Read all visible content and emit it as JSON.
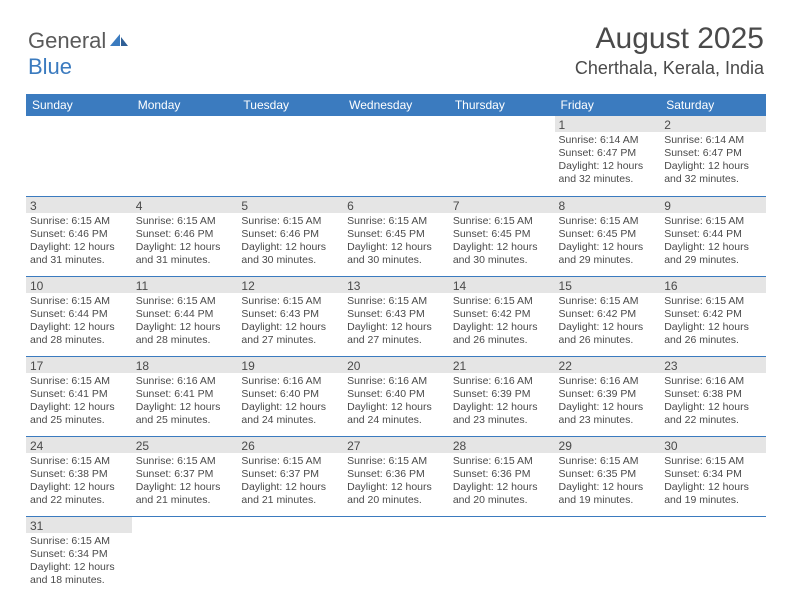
{
  "header": {
    "logo_general": "General",
    "logo_blue": "Blue",
    "month_title": "August 2025",
    "location": "Cherthala, Kerala, India"
  },
  "colors": {
    "header_bg": "#3b7bbf",
    "header_text": "#ffffff",
    "daynum_bg": "#e5e5e5",
    "border": "#3b7bbf",
    "text": "#4a4a4a",
    "logo_blue": "#3b7bbf"
  },
  "weekdays": [
    "Sunday",
    "Monday",
    "Tuesday",
    "Wednesday",
    "Thursday",
    "Friday",
    "Saturday"
  ],
  "weeks": [
    [
      null,
      null,
      null,
      null,
      null,
      {
        "n": "1",
        "sr": "Sunrise: 6:14 AM",
        "ss": "Sunset: 6:47 PM",
        "d1": "Daylight: 12 hours",
        "d2": "and 32 minutes."
      },
      {
        "n": "2",
        "sr": "Sunrise: 6:14 AM",
        "ss": "Sunset: 6:47 PM",
        "d1": "Daylight: 12 hours",
        "d2": "and 32 minutes."
      }
    ],
    [
      {
        "n": "3",
        "sr": "Sunrise: 6:15 AM",
        "ss": "Sunset: 6:46 PM",
        "d1": "Daylight: 12 hours",
        "d2": "and 31 minutes."
      },
      {
        "n": "4",
        "sr": "Sunrise: 6:15 AM",
        "ss": "Sunset: 6:46 PM",
        "d1": "Daylight: 12 hours",
        "d2": "and 31 minutes."
      },
      {
        "n": "5",
        "sr": "Sunrise: 6:15 AM",
        "ss": "Sunset: 6:46 PM",
        "d1": "Daylight: 12 hours",
        "d2": "and 30 minutes."
      },
      {
        "n": "6",
        "sr": "Sunrise: 6:15 AM",
        "ss": "Sunset: 6:45 PM",
        "d1": "Daylight: 12 hours",
        "d2": "and 30 minutes."
      },
      {
        "n": "7",
        "sr": "Sunrise: 6:15 AM",
        "ss": "Sunset: 6:45 PM",
        "d1": "Daylight: 12 hours",
        "d2": "and 30 minutes."
      },
      {
        "n": "8",
        "sr": "Sunrise: 6:15 AM",
        "ss": "Sunset: 6:45 PM",
        "d1": "Daylight: 12 hours",
        "d2": "and 29 minutes."
      },
      {
        "n": "9",
        "sr": "Sunrise: 6:15 AM",
        "ss": "Sunset: 6:44 PM",
        "d1": "Daylight: 12 hours",
        "d2": "and 29 minutes."
      }
    ],
    [
      {
        "n": "10",
        "sr": "Sunrise: 6:15 AM",
        "ss": "Sunset: 6:44 PM",
        "d1": "Daylight: 12 hours",
        "d2": "and 28 minutes."
      },
      {
        "n": "11",
        "sr": "Sunrise: 6:15 AM",
        "ss": "Sunset: 6:44 PM",
        "d1": "Daylight: 12 hours",
        "d2": "and 28 minutes."
      },
      {
        "n": "12",
        "sr": "Sunrise: 6:15 AM",
        "ss": "Sunset: 6:43 PM",
        "d1": "Daylight: 12 hours",
        "d2": "and 27 minutes."
      },
      {
        "n": "13",
        "sr": "Sunrise: 6:15 AM",
        "ss": "Sunset: 6:43 PM",
        "d1": "Daylight: 12 hours",
        "d2": "and 27 minutes."
      },
      {
        "n": "14",
        "sr": "Sunrise: 6:15 AM",
        "ss": "Sunset: 6:42 PM",
        "d1": "Daylight: 12 hours",
        "d2": "and 26 minutes."
      },
      {
        "n": "15",
        "sr": "Sunrise: 6:15 AM",
        "ss": "Sunset: 6:42 PM",
        "d1": "Daylight: 12 hours",
        "d2": "and 26 minutes."
      },
      {
        "n": "16",
        "sr": "Sunrise: 6:15 AM",
        "ss": "Sunset: 6:42 PM",
        "d1": "Daylight: 12 hours",
        "d2": "and 26 minutes."
      }
    ],
    [
      {
        "n": "17",
        "sr": "Sunrise: 6:15 AM",
        "ss": "Sunset: 6:41 PM",
        "d1": "Daylight: 12 hours",
        "d2": "and 25 minutes."
      },
      {
        "n": "18",
        "sr": "Sunrise: 6:16 AM",
        "ss": "Sunset: 6:41 PM",
        "d1": "Daylight: 12 hours",
        "d2": "and 25 minutes."
      },
      {
        "n": "19",
        "sr": "Sunrise: 6:16 AM",
        "ss": "Sunset: 6:40 PM",
        "d1": "Daylight: 12 hours",
        "d2": "and 24 minutes."
      },
      {
        "n": "20",
        "sr": "Sunrise: 6:16 AM",
        "ss": "Sunset: 6:40 PM",
        "d1": "Daylight: 12 hours",
        "d2": "and 24 minutes."
      },
      {
        "n": "21",
        "sr": "Sunrise: 6:16 AM",
        "ss": "Sunset: 6:39 PM",
        "d1": "Daylight: 12 hours",
        "d2": "and 23 minutes."
      },
      {
        "n": "22",
        "sr": "Sunrise: 6:16 AM",
        "ss": "Sunset: 6:39 PM",
        "d1": "Daylight: 12 hours",
        "d2": "and 23 minutes."
      },
      {
        "n": "23",
        "sr": "Sunrise: 6:16 AM",
        "ss": "Sunset: 6:38 PM",
        "d1": "Daylight: 12 hours",
        "d2": "and 22 minutes."
      }
    ],
    [
      {
        "n": "24",
        "sr": "Sunrise: 6:15 AM",
        "ss": "Sunset: 6:38 PM",
        "d1": "Daylight: 12 hours",
        "d2": "and 22 minutes."
      },
      {
        "n": "25",
        "sr": "Sunrise: 6:15 AM",
        "ss": "Sunset: 6:37 PM",
        "d1": "Daylight: 12 hours",
        "d2": "and 21 minutes."
      },
      {
        "n": "26",
        "sr": "Sunrise: 6:15 AM",
        "ss": "Sunset: 6:37 PM",
        "d1": "Daylight: 12 hours",
        "d2": "and 21 minutes."
      },
      {
        "n": "27",
        "sr": "Sunrise: 6:15 AM",
        "ss": "Sunset: 6:36 PM",
        "d1": "Daylight: 12 hours",
        "d2": "and 20 minutes."
      },
      {
        "n": "28",
        "sr": "Sunrise: 6:15 AM",
        "ss": "Sunset: 6:36 PM",
        "d1": "Daylight: 12 hours",
        "d2": "and 20 minutes."
      },
      {
        "n": "29",
        "sr": "Sunrise: 6:15 AM",
        "ss": "Sunset: 6:35 PM",
        "d1": "Daylight: 12 hours",
        "d2": "and 19 minutes."
      },
      {
        "n": "30",
        "sr": "Sunrise: 6:15 AM",
        "ss": "Sunset: 6:34 PM",
        "d1": "Daylight: 12 hours",
        "d2": "and 19 minutes."
      }
    ],
    [
      {
        "n": "31",
        "sr": "Sunrise: 6:15 AM",
        "ss": "Sunset: 6:34 PM",
        "d1": "Daylight: 12 hours",
        "d2": "and 18 minutes."
      },
      null,
      null,
      null,
      null,
      null,
      null
    ]
  ]
}
